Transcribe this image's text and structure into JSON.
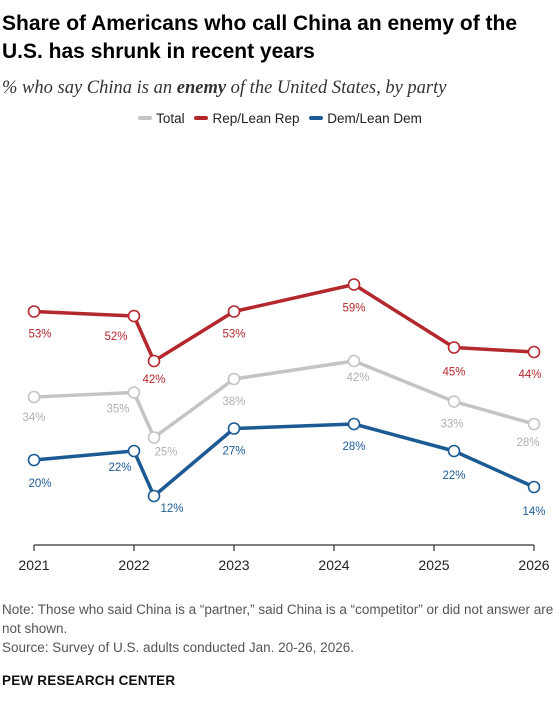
{
  "title": "Share of Americans who call China an enemy of the U.S. has shrunk in recent years",
  "subtitle": {
    "before": "% who say China is an ",
    "emphasis": "enemy",
    "after": " of the United States, by party"
  },
  "colors": {
    "Total": "#c4c4c4",
    "Rep/Lean Rep": "#b3282d",
    "Dem/Lean Dem": "#1c5a94",
    "axis": "#333333",
    "total_label": "#b0b0b0"
  },
  "chart_data": {
    "type": "line",
    "x_ticks": [
      "2021",
      "2022",
      "2023",
      "2024",
      "2025",
      "2026"
    ],
    "x_range": [
      2021,
      2026
    ],
    "y_range": [
      0,
      80
    ],
    "grid": false,
    "legend_position": "top",
    "series": [
      {
        "name": "Total",
        "x": [
          2021,
          2022,
          2022.2,
          2023,
          2024.2,
          2025.2,
          2026
        ],
        "values": [
          34,
          35,
          25,
          38,
          42,
          33,
          28
        ],
        "labels": [
          "34%",
          "35%",
          "25%",
          "38%",
          "42%",
          "33%",
          "28%"
        ]
      },
      {
        "name": "Rep/Lean Rep",
        "x": [
          2021,
          2022,
          2022.2,
          2023,
          2024.2,
          2025.2,
          2026
        ],
        "values": [
          53,
          52,
          42,
          53,
          59,
          45,
          44
        ],
        "labels": [
          "53%",
          "52%",
          "42%",
          "53%",
          "59%",
          "45%",
          "44%"
        ]
      },
      {
        "name": "Dem/Lean Dem",
        "x": [
          2021,
          2022,
          2022.2,
          2023,
          2024.2,
          2025.2,
          2026
        ],
        "values": [
          20,
          22,
          12,
          27,
          28,
          22,
          14
        ],
        "labels": [
          "20%",
          "22%",
          "12%",
          "27%",
          "28%",
          "22%",
          "14%"
        ]
      }
    ]
  },
  "notes": {
    "note": "Note: Those who said China is a “partner,” said China is a “competitor” or did not answer are not shown.",
    "source": "Source: Survey of U.S. adults conducted Jan. 20-26, 2026."
  },
  "brand": "PEW RESEARCH CENTER"
}
